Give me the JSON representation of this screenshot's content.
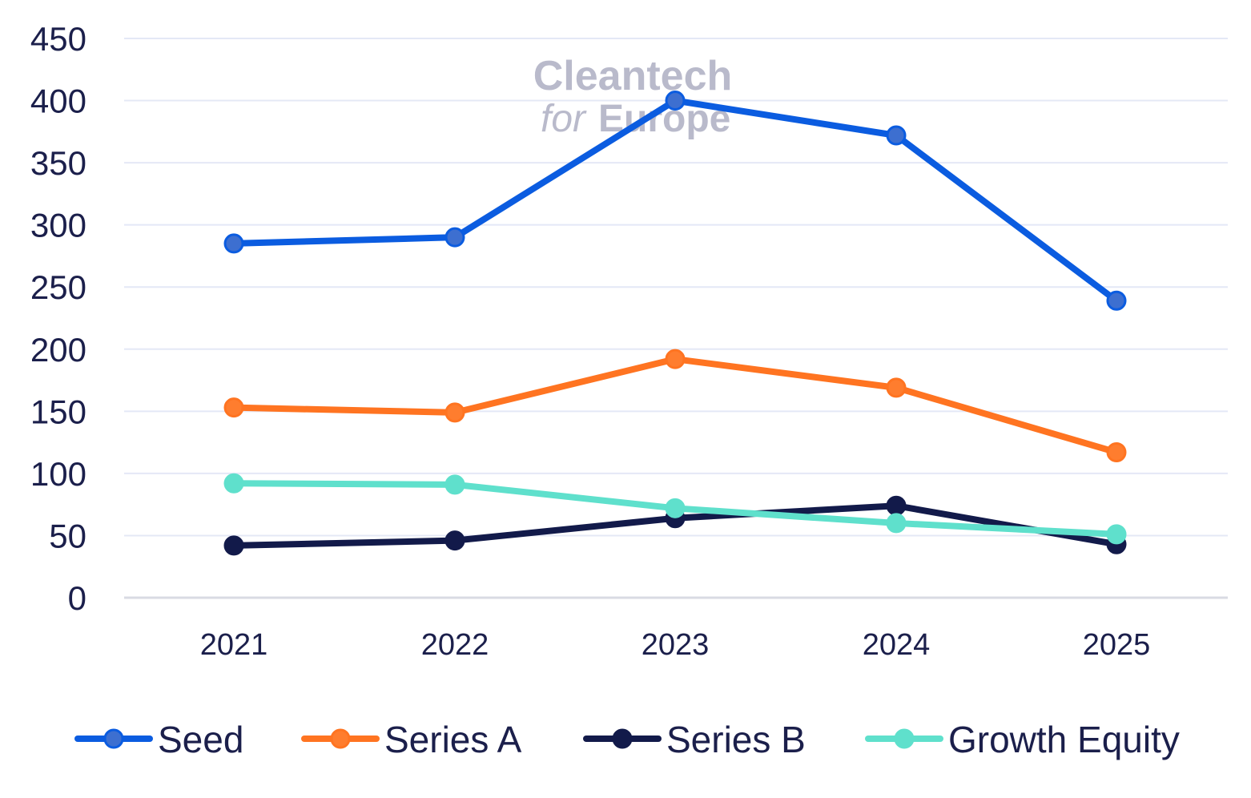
{
  "chart_data": {
    "type": "line",
    "categories": [
      "2021",
      "2022",
      "2023",
      "2024",
      "2025"
    ],
    "ylim": [
      0,
      450
    ],
    "yticks": [
      0,
      50,
      100,
      150,
      200,
      250,
      300,
      350,
      400,
      450
    ],
    "grid": true,
    "legend_position": "bottom",
    "series": [
      {
        "name": "Seed",
        "values": [
          285,
          290,
          400,
          372,
          239
        ],
        "color": "#0b5ce0",
        "marker": "#3d6fd0"
      },
      {
        "name": "Series A",
        "values": [
          153,
          149,
          192,
          169,
          117
        ],
        "color": "#ff7421",
        "marker": "#ff7d2e"
      },
      {
        "name": "Series B",
        "values": [
          42,
          46,
          64,
          74,
          43
        ],
        "color": "#121a4a",
        "marker": "#121a4a"
      },
      {
        "name": "Growth Equity",
        "values": [
          92,
          91,
          72,
          60,
          51
        ],
        "color": "#5fe0cc",
        "marker": "#5fe0cc"
      }
    ],
    "watermark": {
      "line1": "Cleantech",
      "line2a": "for",
      "line2b": "Europe"
    }
  }
}
